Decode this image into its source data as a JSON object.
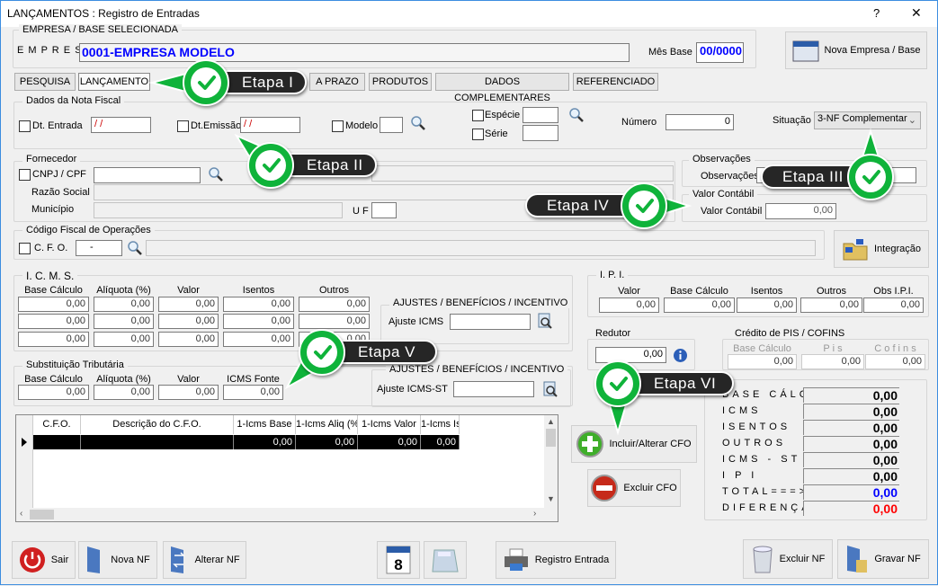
{
  "window": {
    "title": "LANÇAMENTOS : Registro de Entradas",
    "help": "?",
    "close": "✕"
  },
  "empresa": {
    "group": "EMPRESA  /  BASE  SELECIONADA",
    "label": "E M P R E S A",
    "value": "0001-EMPRESA MODELO",
    "mes_label": "Mês Base",
    "mes_value": "00/0000",
    "nova_button": "Nova Empresa / Base"
  },
  "tabs": [
    "PESQUISA",
    "LANÇAMENTO",
    "A PRAZO",
    "PRODUTOS",
    "DADOS COMPLEMENTARES",
    "REFERENCIADO"
  ],
  "nota": {
    "group": "Dados da Nota Fiscal",
    "dt_entrada": "Dt. Entrada",
    "dt_entrada_val": " / /",
    "dt_emissao": "Dt.Emissão",
    "dt_emissao_val": " / /",
    "modelo": "Modelo",
    "especie": "Espécie",
    "serie": "Série",
    "numero": "Número",
    "numero_val": "0",
    "situacao": "Situação",
    "situacao_val": "3-NF Complementar"
  },
  "fornecedor": {
    "group": "Fornecedor",
    "cnpj": "CNPJ / CPF",
    "razao": "Razão Social",
    "municipio": "Município",
    "uf": "U F"
  },
  "obs": {
    "group": "Observações",
    "label": "Observações"
  },
  "valor_contabil": {
    "group": "Valor  Contábil",
    "label": "Valor Contábil",
    "value": "0,00"
  },
  "cfo": {
    "group": "Código  Fiscal  de  Operações",
    "label": "C. F. O.",
    "value": "-",
    "integracao": "Integração"
  },
  "icms": {
    "group": "I.  C.  M.  S.",
    "headers": [
      "Base Cálculo",
      "Alíquota (%)",
      "Valor",
      "Isentos",
      "Outros"
    ],
    "rows": [
      [
        "0,00",
        "0,00",
        "0,00",
        "0,00",
        "0,00"
      ],
      [
        "0,00",
        "0,00",
        "0,00",
        "0,00",
        "0,00"
      ],
      [
        "0,00",
        "0,00",
        "0,00",
        "0,00",
        "0,00"
      ]
    ],
    "ajustes_group": "AJUSTES / BENEFÍCIOS / INCENTIVO",
    "ajuste_label": "Ajuste ICMS"
  },
  "st": {
    "group": "Substituição  Tributária",
    "headers": [
      "Base Cálculo",
      "Alíquota (%)",
      "Valor",
      "ICMS Fonte"
    ],
    "values": [
      "0,00",
      "0,00",
      "0,00",
      "0,00"
    ],
    "ajustes_group": "AJUSTES / BENEFÍCIOS / INCENTIVO",
    "ajuste_label": "Ajuste ICMS-ST"
  },
  "ipi": {
    "group": "I. P. I.",
    "headers": [
      "Valor",
      "Base Cálculo",
      "Isentos",
      "Outros",
      "Obs I.P.I."
    ],
    "values": [
      "0,00",
      "0,00",
      "0,00",
      "0,00",
      "0,00"
    ]
  },
  "redutor": {
    "group": "Redutor",
    "value": "0,00"
  },
  "pis": {
    "group": "Crédito  de  PIS / COFINS",
    "headers": [
      "Base Cálculo",
      "P i s",
      "C o f i n s"
    ],
    "values": [
      "0,00",
      "0,00",
      "0,00"
    ]
  },
  "totals": [
    {
      "label": "BASE CÁLCULO",
      "value": "0,00",
      "color": "#000000"
    },
    {
      "label": "ICMS",
      "value": "0,00",
      "color": "#000000"
    },
    {
      "label": "ISENTOS",
      "value": "0,00",
      "color": "#000000"
    },
    {
      "label": "OUTROS",
      "value": "0,00",
      "color": "#000000"
    },
    {
      "label": "ICMS - ST",
      "value": "0,00",
      "color": "#000000"
    },
    {
      "label": "I P I",
      "value": "0,00",
      "color": "#000000"
    },
    {
      "label": "TOTAL===>",
      "value": "0,00",
      "color": "#0000ff"
    },
    {
      "label": "DIFERENÇA",
      "value": "0,00",
      "color": "#ff0000"
    }
  ],
  "grid": {
    "headers": [
      "C.F.O.",
      "Descrição do C.F.O.",
      "1-Icms Base",
      "1-Icms Aliq (%)",
      "1-Icms Valor",
      "1-Icms Is"
    ],
    "row": [
      "",
      "",
      "0,00",
      "0,00",
      "0,00",
      "0,00"
    ]
  },
  "cfo_buttons": {
    "incluir": "Incluir/Alterar CFO",
    "excluir": "Excluir CFO"
  },
  "bottom": {
    "sair": "Sair",
    "nova": "Nova NF",
    "alterar": "Alterar NF",
    "registro": "Registro Entrada",
    "excluir": "Excluir NF",
    "gravar": "Gravar NF"
  },
  "steps": [
    "Etapa I",
    "Etapa II",
    "Etapa III",
    "Etapa IV",
    "Etapa V",
    "Etapa VI"
  ],
  "colors": {
    "accent_green": "#0fb33a",
    "empresa_text": "#0000ff",
    "window_border": "#3c8de0"
  }
}
